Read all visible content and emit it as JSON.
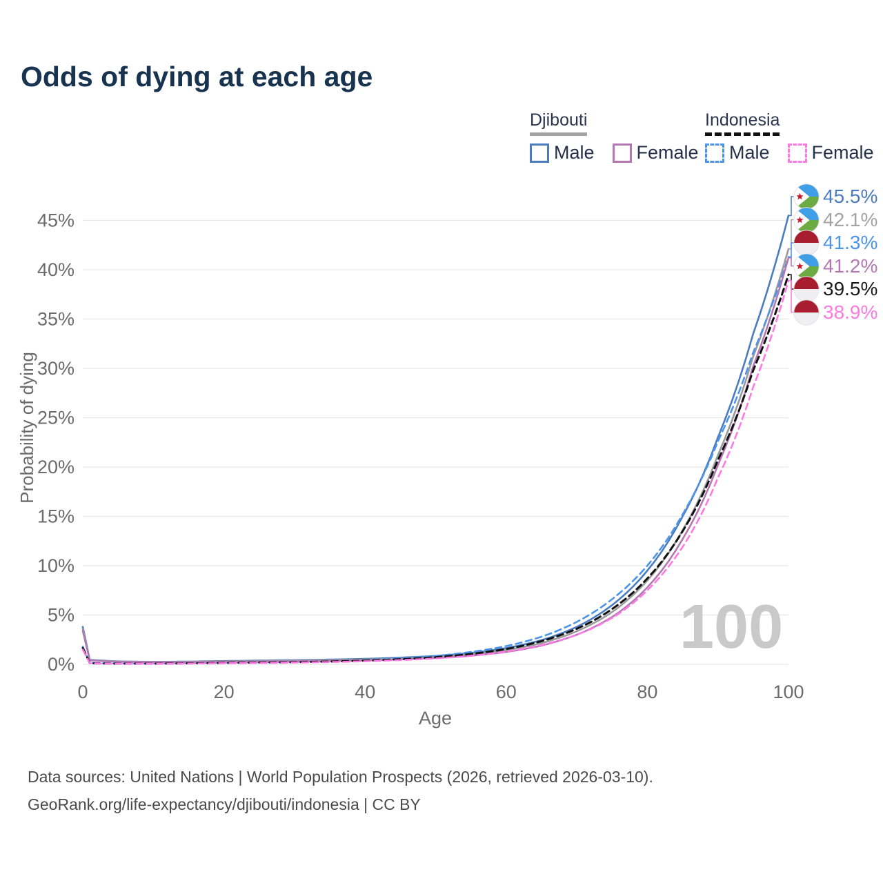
{
  "title": "Odds of dying at each age",
  "watermark": "100",
  "legend": {
    "groups": [
      {
        "country": "Djibouti",
        "line_style": "solid",
        "underline_color": "#a3a3a3",
        "items": [
          {
            "label": "Male",
            "color": "#4b7cc0"
          },
          {
            "label": "Female",
            "color": "#b377b3"
          }
        ]
      },
      {
        "country": "Indonesia",
        "line_style": "dashed",
        "underline_color": "#111111",
        "items": [
          {
            "label": "Male",
            "color": "#4b94ea"
          },
          {
            "label": "Female",
            "color": "#fc7ae2"
          }
        ]
      }
    ]
  },
  "axes": {
    "y_label": "Probability of dying",
    "x_label": "Age",
    "y_ticks": [
      "0%",
      "5%",
      "10%",
      "15%",
      "20%",
      "25%",
      "30%",
      "35%",
      "40%",
      "45%"
    ],
    "x_ticks": [
      "0",
      "20",
      "40",
      "60",
      "80",
      "100"
    ]
  },
  "chart_data": {
    "type": "line",
    "title": "Odds of dying at each age",
    "xlabel": "Age",
    "ylabel": "Probability of dying",
    "xlim": [
      0,
      100
    ],
    "ylim_percent": [
      0,
      47
    ],
    "grid": "horizontal",
    "x": [
      0,
      1,
      5,
      10,
      15,
      20,
      25,
      30,
      35,
      40,
      45,
      50,
      55,
      60,
      65,
      70,
      75,
      80,
      85,
      90,
      95,
      100
    ],
    "series": [
      {
        "name": "Djibouti Male",
        "color": "#4b7cc0",
        "dashed": false,
        "end_label": "45.5%",
        "values": [
          3.8,
          0.45,
          0.3,
          0.25,
          0.28,
          0.33,
          0.38,
          0.42,
          0.48,
          0.55,
          0.68,
          0.85,
          1.15,
          1.65,
          2.45,
          3.8,
          6.0,
          9.5,
          15.0,
          23.0,
          33.5,
          45.5
        ]
      },
      {
        "name": "Djibouti (both sexes)",
        "color": "#9a9a9a",
        "dashed": false,
        "end_label": "42.1%",
        "values": [
          3.6,
          0.42,
          0.28,
          0.23,
          0.25,
          0.29,
          0.33,
          0.37,
          0.42,
          0.48,
          0.59,
          0.74,
          1.0,
          1.45,
          2.15,
          3.35,
          5.3,
          8.5,
          13.6,
          21.2,
          31.2,
          42.1
        ]
      },
      {
        "name": "Indonesia Male",
        "color": "#4b94ea",
        "dashed": true,
        "end_label": "41.3%",
        "values": [
          1.8,
          0.12,
          0.08,
          0.08,
          0.12,
          0.17,
          0.21,
          0.26,
          0.33,
          0.44,
          0.6,
          0.85,
          1.25,
          1.85,
          2.8,
          4.3,
          6.6,
          10.0,
          15.2,
          22.6,
          31.6,
          41.3
        ]
      },
      {
        "name": "Djibouti Female",
        "color": "#b377b3",
        "dashed": false,
        "end_label": "41.2%",
        "values": [
          3.4,
          0.4,
          0.26,
          0.21,
          0.22,
          0.25,
          0.28,
          0.31,
          0.36,
          0.42,
          0.51,
          0.64,
          0.87,
          1.25,
          1.9,
          3.0,
          4.8,
          7.8,
          12.7,
          20.2,
          30.2,
          41.2
        ]
      },
      {
        "name": "Indonesia (both sexes)",
        "color": "#111111",
        "dashed": true,
        "end_label": "39.5%",
        "values": [
          1.65,
          0.11,
          0.07,
          0.07,
          0.1,
          0.14,
          0.18,
          0.22,
          0.28,
          0.37,
          0.51,
          0.72,
          1.05,
          1.55,
          2.35,
          3.6,
          5.6,
          8.7,
          13.5,
          20.7,
          29.8,
          39.5
        ]
      },
      {
        "name": "Indonesia Female",
        "color": "#fc7ae2",
        "dashed": true,
        "end_label": "38.9%",
        "values": [
          1.5,
          0.1,
          0.06,
          0.06,
          0.08,
          0.11,
          0.14,
          0.18,
          0.23,
          0.31,
          0.43,
          0.6,
          0.87,
          1.28,
          1.95,
          3.0,
          4.7,
          7.5,
          11.9,
          18.9,
          28.1,
          38.9
        ]
      }
    ]
  },
  "end_labels": [
    {
      "value": "45.5%",
      "color": "#4b7cc0",
      "flag": "djibouti"
    },
    {
      "value": "42.1%",
      "color": "#a3a3a3",
      "flag": "djibouti"
    },
    {
      "value": "41.3%",
      "color": "#4b94ea",
      "flag": "indonesia"
    },
    {
      "value": "41.2%",
      "color": "#b377b3",
      "flag": "djibouti"
    },
    {
      "value": "39.5%",
      "color": "#1a1a1a",
      "flag": "indonesia"
    },
    {
      "value": "38.9%",
      "color": "#fc7ae2",
      "flag": "indonesia"
    }
  ],
  "flag_colors": {
    "djibouti": {
      "top": "#3f9ee6",
      "bottom": "#6cab42",
      "wedge": "#ffffff",
      "star": "#c81a2e"
    },
    "indonesia": {
      "top": "#a81d2f",
      "bottom": "#efeff1"
    }
  },
  "footer": {
    "line1": "Data sources: United Nations | World Population Prospects (2026, retrieved 2026-03-10).",
    "line2": "GeoRank.org/life-expectancy/djibouti/indonesia | CC BY"
  }
}
